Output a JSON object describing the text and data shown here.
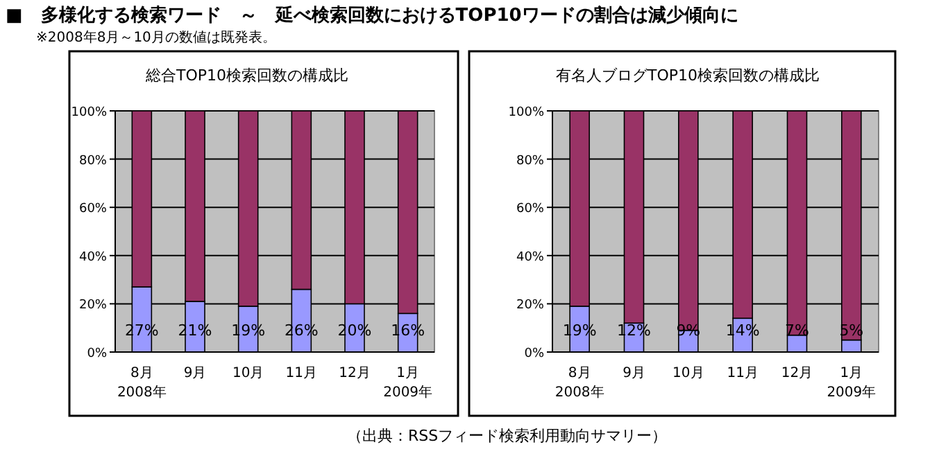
{
  "chart_data": [
    {
      "type": "other",
      "title": "■　多様化する検索ワード　～　延べ検索回数におけるTOP10ワードの割合は減少傾向に",
      "subtitle": "※2008年8月～10月の数値は既発表。",
      "annotations": [
        "（出典：RSSフィード検索利用動向サマリー）"
      ]
    },
    {
      "type": "bar",
      "title": "総合TOP10検索回数の構成比",
      "stacked": true,
      "grid": "y",
      "categories": [
        "8月\n2008年",
        "9月",
        "10月",
        "11月",
        "12月",
        "1月\n2009年"
      ],
      "ylim": [
        0,
        100
      ],
      "yticks": [
        {
          "value": 0,
          "label": "0%"
        },
        {
          "value": 20,
          "label": "20%"
        },
        {
          "value": 40,
          "label": "40%"
        },
        {
          "value": 60,
          "label": "60%"
        },
        {
          "value": 80,
          "label": "80%"
        },
        {
          "value": 100,
          "label": "100%"
        }
      ],
      "series": [
        {
          "color": "#9999ff",
          "values": [
            27,
            21,
            19,
            26,
            20,
            16
          ],
          "value_labels": [
            "27%",
            "21%",
            "19%",
            "26%",
            "20%",
            "16%"
          ]
        },
        {
          "color": "#993366",
          "values": [
            73,
            79,
            81,
            74,
            80,
            84
          ]
        }
      ]
    },
    {
      "type": "bar",
      "title": "有名人ブログTOP10検索回数の構成比",
      "stacked": true,
      "grid": "y",
      "categories": [
        "8月\n2008年",
        "9月",
        "10月",
        "11月",
        "12月",
        "1月\n2009年"
      ],
      "ylim": [
        0,
        100
      ],
      "yticks": [
        {
          "value": 0,
          "label": "0%"
        },
        {
          "value": 20,
          "label": "20%"
        },
        {
          "value": 40,
          "label": "40%"
        },
        {
          "value": 60,
          "label": "60%"
        },
        {
          "value": 80,
          "label": "80%"
        },
        {
          "value": 100,
          "label": "100%"
        }
      ],
      "series": [
        {
          "color": "#9999ff",
          "values": [
            19,
            12,
            9,
            14,
            7,
            5
          ],
          "value_labels": [
            "19%",
            "12%",
            "9%",
            "14%",
            "7%",
            "5%"
          ]
        },
        {
          "color": "#993366",
          "values": [
            81,
            88,
            91,
            86,
            93,
            95
          ]
        }
      ]
    }
  ]
}
